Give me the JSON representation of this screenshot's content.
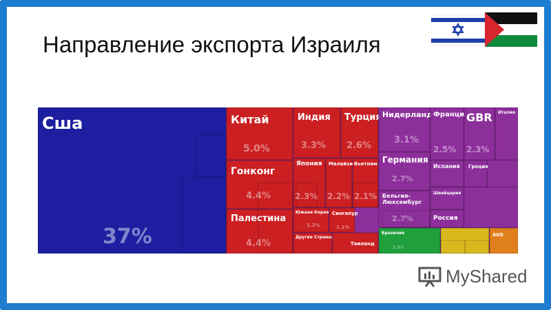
{
  "slide": {
    "title": "Направление экспорта Израиля"
  },
  "watermark": {
    "text": "MyShared"
  },
  "flags": [
    "israel-flag",
    "palestine-flag"
  ],
  "colors": {
    "frame": "#1f7dd0",
    "usa": "#1d1fa0",
    "asia": "#cb1f22",
    "europe": "#8d2f9b",
    "southAmerica": "#20a03c",
    "oceania": "#d9b81e",
    "africa": "#e0801c"
  },
  "chart_data": {
    "type": "treemap",
    "title": "",
    "items": [
      {
        "key": "usa",
        "label": "Сша",
        "value": 37,
        "value_label": "37%",
        "color": "#1d1fa0"
      },
      {
        "key": "china",
        "label": "Китай",
        "value": 5.0,
        "value_label": "5.0%",
        "color": "#cb1f22"
      },
      {
        "key": "hongkong",
        "label": "Гонконг",
        "value": 4.4,
        "value_label": "4.4%",
        "color": "#cb1f22"
      },
      {
        "key": "palestine",
        "label": "Палестина",
        "value": 4.4,
        "value_label": "4.4%",
        "color": "#cb1f22"
      },
      {
        "key": "india",
        "label": "Индия",
        "value": 3.3,
        "value_label": "3.3%",
        "color": "#cb1f22"
      },
      {
        "key": "turkey",
        "label": "Турция",
        "value": 2.6,
        "value_label": "2.6%",
        "color": "#cb1f22"
      },
      {
        "key": "japan",
        "label": "Япония",
        "value": 2.3,
        "value_label": "2.3%",
        "color": "#cb1f22"
      },
      {
        "key": "malaysia",
        "label": "Малайзия",
        "value": 2.2,
        "value_label": "2.2%",
        "color": "#cb1f22"
      },
      {
        "key": "vietnam",
        "label": "Вьетнам",
        "value": 2.1,
        "value_label": "2.1%",
        "color": "#cb1f22"
      },
      {
        "key": "southkorea",
        "label": "Южная Корея",
        "value": 1.2,
        "value_label": "1.2%",
        "color": "#cb1f22"
      },
      {
        "key": "singapore",
        "label": "Сингапур",
        "value": 1.1,
        "value_label": "1.1%",
        "color": "#cb1f22"
      },
      {
        "key": "otherasia",
        "label": "Другие Страны...",
        "value": null,
        "value_label": "",
        "color": "#cb1f22"
      },
      {
        "key": "thailand",
        "label": "Таиланд",
        "value": null,
        "value_label": "",
        "color": "#cb1f22"
      },
      {
        "key": "netherlands",
        "label": "Нидерланды",
        "value": 3.1,
        "value_label": "3.1%",
        "color": "#8d2f9b"
      },
      {
        "key": "germany",
        "label": "Германия",
        "value": 2.7,
        "value_label": "2.7%",
        "color": "#8d2f9b"
      },
      {
        "key": "belgium",
        "label": "Бельгия-Люксембург",
        "value": 2.7,
        "value_label": "2.7%",
        "color": "#8d2f9b"
      },
      {
        "key": "france",
        "label": "Франция",
        "value": 2.5,
        "value_label": "2.5%",
        "color": "#8d2f9b"
      },
      {
        "key": "gbr",
        "label": "GBR",
        "value": 2.3,
        "value_label": "2.3%",
        "color": "#8d2f9b"
      },
      {
        "key": "italy",
        "label": "Италия",
        "value": null,
        "value_label": "",
        "color": "#8d2f9b"
      },
      {
        "key": "spain",
        "label": "Испания",
        "value": null,
        "value_label": "",
        "color": "#8d2f9b"
      },
      {
        "key": "greece",
        "label": "Греция",
        "value": null,
        "value_label": "",
        "color": "#8d2f9b"
      },
      {
        "key": "switzerland",
        "label": "Швейцария",
        "value": null,
        "value_label": "",
        "color": "#8d2f9b"
      },
      {
        "key": "russia",
        "label": "Россия",
        "value": null,
        "value_label": "",
        "color": "#8d2f9b"
      },
      {
        "key": "brazil",
        "label": "Бразилия",
        "value": 1.3,
        "value_label": "1.3%",
        "color": "#20a03c"
      },
      {
        "key": "oceania",
        "label": "",
        "value": null,
        "value_label": "",
        "color": "#d9b81e"
      },
      {
        "key": "aus",
        "label": "AUS",
        "value": null,
        "value_label": "",
        "color": "#e0801c"
      }
    ]
  }
}
